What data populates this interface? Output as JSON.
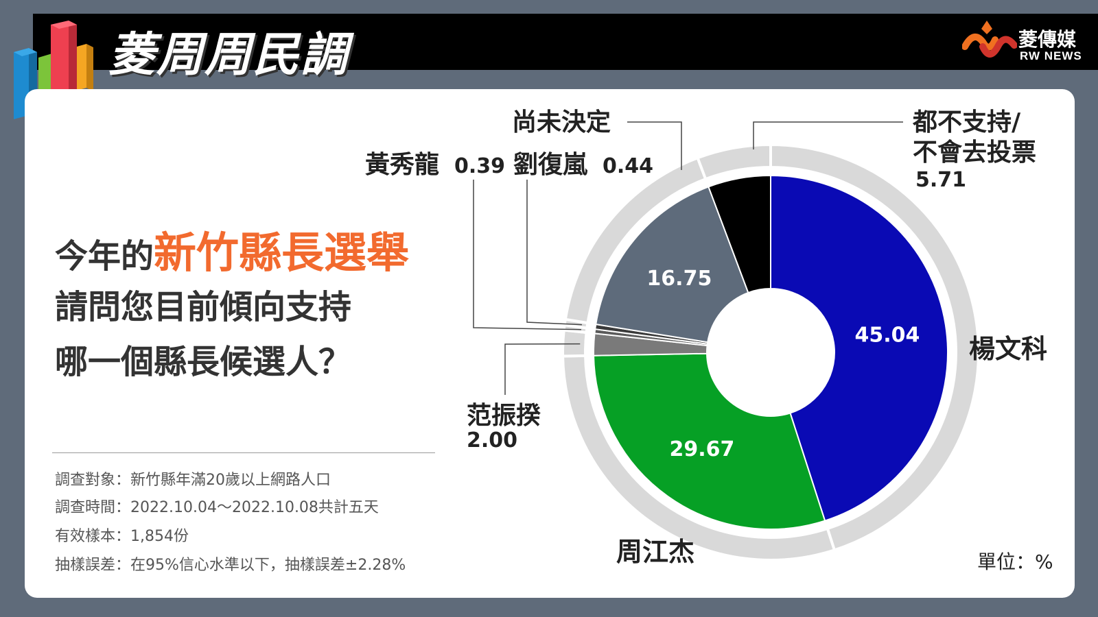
{
  "header": {
    "title": "菱周周民調",
    "brand_name": "菱傳媒",
    "brand_sub": "RW NEWS"
  },
  "question": {
    "prefix": "今年的",
    "highlight": "新竹縣長選舉",
    "line2": "請問您目前傾向支持",
    "line3": "哪一個縣長候選人？"
  },
  "meta": {
    "target": "調查對象：新竹縣年滿20歲以上網路人口",
    "period": "調查時間：2022.10.04～2022.10.08共計五天",
    "sample": "有效樣本：1,854份",
    "error": "抽樣誤差：在95%信心水準以下，抽樣誤差±2.28%"
  },
  "unit": "單位：%",
  "colors": {
    "accent": "#f26a2e",
    "header": "#000000",
    "background": "#5f6b7a"
  },
  "chart_data": {
    "type": "pie",
    "unit": "%",
    "slices": [
      {
        "label": "楊文科",
        "value": 45.04,
        "color": "#0a0ab4",
        "value_text": "45.04"
      },
      {
        "label": "周江杰",
        "value": 29.67,
        "color": "#06a025",
        "value_text": "29.67"
      },
      {
        "label": "范振揆",
        "value": 2.0,
        "color": "#7a7a7a",
        "value_text": "2.00"
      },
      {
        "label": "黃秀龍",
        "value": 0.39,
        "color": "#5a5a5a",
        "value_text": "0.39"
      },
      {
        "label": "劉復嵐",
        "value": 0.44,
        "color": "#3a3a3a",
        "value_text": "0.44"
      },
      {
        "label": "尚未決定",
        "value": 16.75,
        "color": "#5e6b7b",
        "value_text": "16.75"
      },
      {
        "label": "都不支持/不會去投票",
        "value": 5.71,
        "color": "#000000",
        "value_text": "5.71"
      }
    ]
  }
}
